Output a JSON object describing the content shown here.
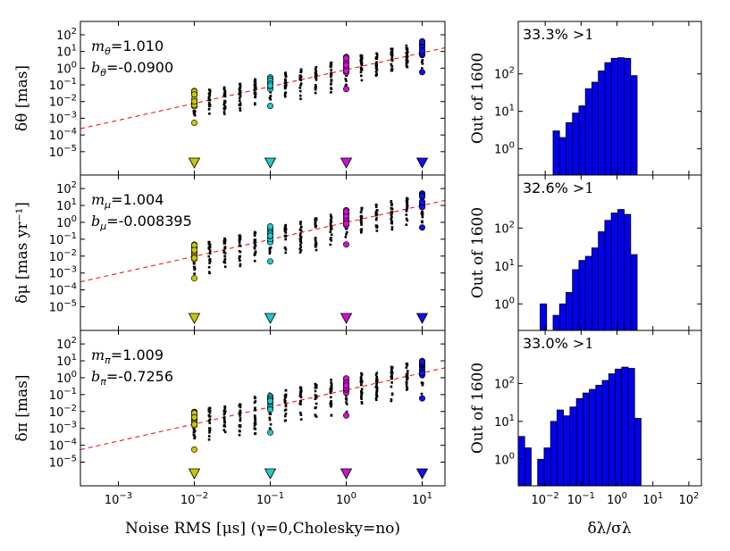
{
  "figure": {
    "xlabel": "Noise RMS [μs] (γ=0,Cholesky=no)",
    "hist_xlabel": "δλ/σλ",
    "hist_ylabel": "Out of 1600"
  },
  "chart_data": [
    {
      "type": "scatter",
      "panel": "scatter-theta",
      "ylabel": "δθ [mas]",
      "slope_label": "m",
      "slope_sub": "θ",
      "slope_value": "1.010",
      "intercept_label": "b",
      "intercept_sub": "θ",
      "intercept_value": "-0.0900",
      "slope": 1.01,
      "intercept_log10": -0.09,
      "xlim_log10": [
        -3.5,
        1.3
      ],
      "ylim_log10": [
        -6.4,
        2.8
      ],
      "xticks": [
        "10^-3",
        "10^-2",
        "10^-1",
        "10^0",
        "10^1"
      ],
      "yticks": [
        "10^-5",
        "10^-4",
        "10^-3",
        "10^-2",
        "10^-1",
        "10^0",
        "10^1",
        "10^2"
      ],
      "spread_log10": [
        -1.8,
        0.8
      ],
      "highlight_levels": [
        {
          "x": 0.01,
          "color": "#c8c800",
          "name": "yellow"
        },
        {
          "x": 0.1,
          "color": "#20c8c8",
          "name": "cyan"
        },
        {
          "x": 1,
          "color": "#d010d0",
          "name": "magenta"
        },
        {
          "x": 10,
          "color": "#1010f0",
          "name": "blue"
        }
      ]
    },
    {
      "type": "scatter",
      "panel": "scatter-mu",
      "ylabel": "δμ [mas yr⁻¹]",
      "slope_label": "m",
      "slope_sub": "μ",
      "slope_value": "1.004",
      "intercept_label": "b",
      "intercept_sub": "μ",
      "intercept_value": "-0.008395",
      "slope": 1.004,
      "intercept_log10": -0.008395,
      "xlim_log10": [
        -3.5,
        1.3
      ],
      "ylim_log10": [
        -6.4,
        2.8
      ],
      "xticks": [
        "10^-3",
        "10^-2",
        "10^-1",
        "10^0",
        "10^1"
      ],
      "yticks": [
        "10^-5",
        "10^-4",
        "10^-3",
        "10^-2",
        "10^-1",
        "10^0",
        "10^1",
        "10^2"
      ],
      "spread_log10": [
        -2.0,
        0.8
      ],
      "highlight_levels": [
        {
          "x": 0.01,
          "color": "#c8c800",
          "name": "yellow"
        },
        {
          "x": 0.1,
          "color": "#20c8c8",
          "name": "cyan"
        },
        {
          "x": 1,
          "color": "#d010d0",
          "name": "magenta"
        },
        {
          "x": 10,
          "color": "#1010f0",
          "name": "blue"
        }
      ]
    },
    {
      "type": "scatter",
      "panel": "scatter-pi",
      "ylabel": "δπ [mas]",
      "slope_label": "m",
      "slope_sub": "π",
      "slope_value": "1.009",
      "intercept_label": "b",
      "intercept_sub": "π",
      "intercept_value": "-0.7256",
      "slope": 1.009,
      "intercept_log10": -0.7256,
      "xlim_log10": [
        -3.5,
        1.3
      ],
      "ylim_log10": [
        -6.4,
        2.8
      ],
      "xticks": [
        "10^-3",
        "10^-2",
        "10^-1",
        "10^0",
        "10^1"
      ],
      "yticks": [
        "10^-5",
        "10^-4",
        "10^-3",
        "10^-2",
        "10^-1",
        "10^0",
        "10^1",
        "10^2"
      ],
      "spread_log10": [
        -2.3,
        1.0
      ],
      "highlight_levels": [
        {
          "x": 0.01,
          "color": "#c8c800",
          "name": "yellow"
        },
        {
          "x": 0.1,
          "color": "#20c8c8",
          "name": "cyan"
        },
        {
          "x": 1,
          "color": "#d010d0",
          "name": "magenta"
        },
        {
          "x": 10,
          "color": "#1010f0",
          "name": "blue"
        }
      ]
    },
    {
      "type": "bar",
      "panel": "hist-theta",
      "annotation_pct": "33.3%",
      "annotation_rel": ">1",
      "bar_color": "#0000ee",
      "xlim_log10": [
        -2.75,
        2.35
      ],
      "ylim_log10": [
        -0.7,
        3.4
      ],
      "xticks": [
        "10^-2",
        "10^-1",
        "10^0",
        "10^1",
        "10^2"
      ],
      "yticks": [
        "10^0",
        "10^1",
        "10^2"
      ],
      "bin_edges_log10": [
        -1.78,
        -1.6,
        -1.42,
        -1.24,
        -1.06,
        -0.88,
        -0.7,
        -0.52,
        -0.34,
        -0.16,
        0.02,
        0.2,
        0.38,
        0.56
      ],
      "counts": [
        3,
        2,
        5,
        9,
        14,
        40,
        60,
        120,
        200,
        260,
        270,
        260,
        90
      ]
    },
    {
      "type": "bar",
      "panel": "hist-mu",
      "annotation_pct": "32.6%",
      "annotation_rel": ">1",
      "bar_color": "#0000ee",
      "xlim_log10": [
        -2.75,
        2.35
      ],
      "ylim_log10": [
        -0.7,
        3.4
      ],
      "xticks": [
        "10^-2",
        "10^-1",
        "10^0",
        "10^1",
        "10^2"
      ],
      "yticks": [
        "10^0",
        "10^1",
        "10^2"
      ],
      "bin_edges_log10": [
        -2.14,
        -1.96,
        -1.78,
        -1.6,
        -1.42,
        -1.24,
        -1.06,
        -0.88,
        -0.7,
        -0.52,
        -0.34,
        -0.16,
        0.02,
        0.2,
        0.38,
        0.56
      ],
      "counts": [
        1,
        0,
        0.5,
        1,
        2,
        8,
        14,
        18,
        30,
        80,
        160,
        250,
        310,
        230,
        20
      ]
    },
    {
      "type": "bar",
      "panel": "hist-pi",
      "annotation_pct": "33.0%",
      "annotation_rel": ">1",
      "bar_color": "#0000ee",
      "xlim_log10": [
        -2.75,
        2.35
      ],
      "ylim_log10": [
        -0.7,
        3.4
      ],
      "xticks": [
        "10^-2",
        "10^-1",
        "10^0",
        "10^1",
        "10^2"
      ],
      "yticks": [
        "10^0",
        "10^1",
        "10^2"
      ],
      "bin_edges_log10": [
        -2.75,
        -2.57,
        -2.39,
        -2.21,
        -2.03,
        -1.85,
        -1.67,
        -1.49,
        -1.31,
        -1.13,
        -0.95,
        -0.77,
        -0.59,
        -0.41,
        -0.23,
        -0.05,
        0.13,
        0.31,
        0.49,
        0.67
      ],
      "counts": [
        4,
        2,
        0,
        1,
        2,
        10,
        20,
        14,
        24,
        40,
        56,
        70,
        90,
        120,
        180,
        240,
        270,
        250,
        12
      ]
    }
  ]
}
